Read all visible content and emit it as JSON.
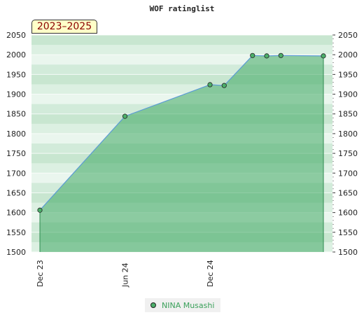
{
  "chart_data": {
    "type": "area",
    "title": "WOF ratinglist",
    "period_label": "2023–2025",
    "x_tick_labels": [
      "Dec 23",
      "Jun 24",
      "Dec 24"
    ],
    "y_ticks": [
      1500,
      1550,
      1600,
      1650,
      1700,
      1750,
      1800,
      1850,
      1900,
      1950,
      2000,
      2050
    ],
    "ylim": [
      1500,
      2050
    ],
    "x_range": [
      "2023-12",
      "2025-08"
    ],
    "grid": true,
    "legend_position": "bottom",
    "series": [
      {
        "name": "NINA Musashi",
        "color": "#4caf6a",
        "x": [
          "2023-12",
          "2024-06",
          "2024-12",
          "2025-01",
          "2025-03",
          "2025-04",
          "2025-05",
          "2025-08"
        ],
        "values": [
          1606,
          1844,
          1924,
          1922,
          1998,
          1997,
          1998,
          1997
        ]
      }
    ]
  }
}
